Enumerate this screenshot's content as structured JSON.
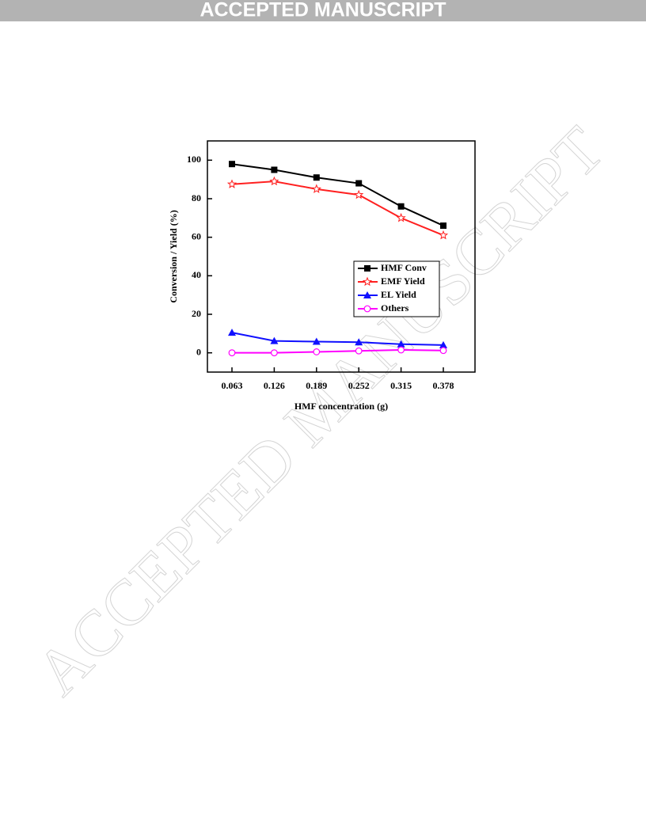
{
  "header": {
    "banner": "ACCEPTED MANUSCRIPT"
  },
  "watermark": "ACCEPTED MANUSCRIPT",
  "chart_data": {
    "type": "line",
    "xlabel": "HMF concentration (g)",
    "ylabel": "Conversion / Yield (%)",
    "categories": [
      "0.063",
      "0.126",
      "0.189",
      "0.252",
      "0.315",
      "0.378"
    ],
    "ylim": [
      -10,
      110
    ],
    "yticks": [
      0,
      20,
      40,
      60,
      80,
      100
    ],
    "legend": "right",
    "series": [
      {
        "name": "HMF Conv",
        "color": "#000000",
        "marker": "square",
        "values": [
          98,
          95,
          91,
          88,
          76,
          66
        ]
      },
      {
        "name": "EMF Yield",
        "color": "#ff2020",
        "marker": "star",
        "values": [
          87.5,
          89,
          85,
          82,
          70,
          61
        ]
      },
      {
        "name": "EL Yield",
        "color": "#1010ff",
        "marker": "triangle",
        "values": [
          10.5,
          6.2,
          5.8,
          5.5,
          4.5,
          4.0
        ]
      },
      {
        "name": "Others",
        "color": "#ff00ff",
        "marker": "circle",
        "values": [
          0,
          0,
          0.5,
          1,
          1.5,
          1.2
        ]
      }
    ]
  }
}
